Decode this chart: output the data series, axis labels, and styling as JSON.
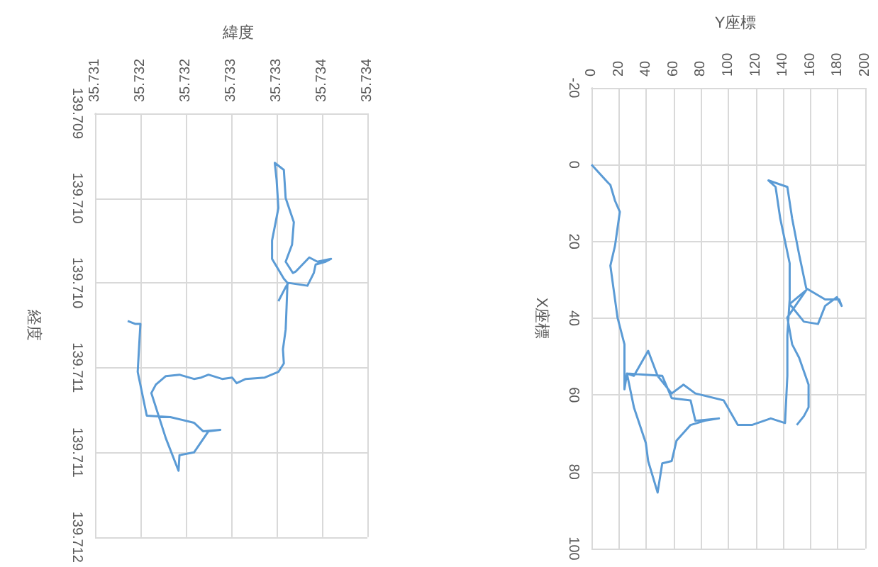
{
  "chart_data": [
    {
      "type": "line",
      "xlabel": "緯度",
      "ylabel": "経度",
      "xlim": [
        35.731,
        35.734
      ],
      "xticks": [
        35.731,
        {
          "value": 35.7315,
          "label": "35.732"
        },
        35.732,
        {
          "value": 35.7325,
          "label": "35.733"
        },
        35.733,
        {
          "value": 35.7335,
          "label": "35.734"
        },
        35.734
      ],
      "ylim": [
        139.712,
        139.709
      ],
      "yticks": [
        139.709,
        {
          "value": 139.7096,
          "label": "139.710"
        },
        {
          "value": 139.7102,
          "label": "139.710"
        },
        {
          "value": 139.7108,
          "label": "139.711"
        },
        {
          "value": 139.7114,
          "label": "139.711"
        },
        139.712
      ],
      "grid": true,
      "series": [
        {
          "color": "#5b9bd5",
          "x": [
            35.73136,
            35.73144,
            35.7315,
            35.73149,
            35.73147,
            35.73157,
            35.73183,
            35.73209,
            35.73219,
            35.73238,
            35.73225,
            35.73209,
            35.73193,
            35.73192,
            35.73178,
            35.73162,
            35.73167,
            35.73178,
            35.73193,
            35.73209,
            35.73217,
            35.73225,
            35.7324,
            35.73251,
            35.73256,
            35.73266,
            35.73287,
            35.73302,
            35.73308,
            35.73307,
            35.7331,
            35.73311,
            35.73312,
            35.73308,
            35.73295,
            35.73295,
            35.73302,
            35.733,
            35.73298,
            35.73308,
            35.7331,
            35.73319,
            35.73317,
            35.7331,
            35.73318,
            35.73321,
            35.73336,
            35.73345,
            35.7336,
            35.73354,
            35.73343,
            35.73341,
            35.73334,
            35.73313,
            35.7331,
            35.73302
          ],
          "values": [
            139.71047,
            139.71049,
            139.71049,
            139.7106,
            139.71083,
            139.71114,
            139.71115,
            139.71119,
            139.71125,
            139.71124,
            139.71125,
            139.7114,
            139.71142,
            139.71153,
            139.7113,
            139.71098,
            139.71092,
            139.71086,
            139.71085,
            139.71088,
            139.71087,
            139.71085,
            139.71088,
            139.71087,
            139.71091,
            139.71088,
            139.71087,
            139.71083,
            139.71077,
            139.71067,
            139.71053,
            139.71037,
            139.7102,
            139.71017,
            139.71003,
            139.7099,
            139.70967,
            139.70947,
            139.70935,
            139.7094,
            139.7096,
            139.70977,
            139.70993,
            139.71005,
            139.71013,
            139.71012,
            139.71002,
            139.71005,
            139.71003,
            139.71005,
            139.71007,
            139.71013,
            139.71022,
            139.7102,
            139.71023,
            139.71033
          ]
        }
      ]
    },
    {
      "type": "line",
      "xlabel": "Y座標",
      "ylabel": "X座標",
      "xlim": [
        0,
        200
      ],
      "xticks": [
        0,
        20,
        40,
        60,
        80,
        100,
        120,
        140,
        160,
        180,
        200
      ],
      "ylim": [
        100,
        -20
      ],
      "yticks": [
        -20,
        0,
        20,
        40,
        60,
        80,
        100
      ],
      "grid": true,
      "series": [
        {
          "color": "#5b9bd5",
          "x": [
            0,
            12.1,
            13.8,
            17.2,
            20.7,
            17.2,
            13.8,
            19,
            24.1,
            24.1,
            25.9,
            51.7,
            58.6,
            72.4,
            75.9,
            93.1,
            82.8,
            72.4,
            62.1,
            58.6,
            51.7,
            48.3,
            41.4,
            39.7,
            31,
            25.9,
            31,
            41.4,
            48.3,
            58.6,
            67.2,
            75.9,
            96.6,
            106.9,
            117.2,
            131,
            141.4,
            143.1,
            143.1,
            144.8,
            144.8,
            137.9,
            134.5,
            129.3,
            143.1,
            146.6,
            151.7,
            156.9,
            170.7,
            181,
            182.8,
            179.3,
            170.7,
            165.5,
            155.2,
            144.8,
            156.9,
            143.1,
            146.6,
            151.7,
            158.6,
            158.6,
            155.2,
            150
          ],
          "values": [
            0,
            4.7,
            5.3,
            9.4,
            12.3,
            21.1,
            26.3,
            39.8,
            46.8,
            58.5,
            54.4,
            55,
            60.8,
            61.4,
            66.7,
            66.1,
            66.7,
            67.8,
            71.9,
            77.2,
            77.8,
            85.4,
            77.2,
            72.5,
            63.2,
            54.4,
            55,
            48.5,
            55,
            59.6,
            57.3,
            59.6,
            61.4,
            67.8,
            67.8,
            66.1,
            67.3,
            55,
            44.4,
            35.1,
            25.7,
            14,
            5.8,
            4.1,
            5.8,
            14,
            23.4,
            32.2,
            35.1,
            35.1,
            36.8,
            34.5,
            36.8,
            41.5,
            40.9,
            36.3,
            32.7,
            39.8,
            46.8,
            50.3,
            57.3,
            63.2,
            65.5,
            67.8
          ]
        }
      ]
    }
  ]
}
